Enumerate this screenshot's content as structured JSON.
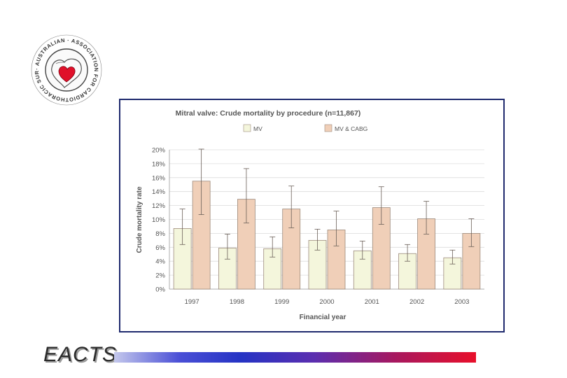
{
  "logo": {
    "ring_text": "· AUSTRALIAN · ASSOCIATION FOR CARDIOTHORACIC SURGERY ·",
    "emblem": "heart-map-icon"
  },
  "footer": {
    "brand": "EACTS"
  },
  "colors": {
    "frame": "#1f2a6e",
    "mv_fill": "#f4f6dc",
    "mv_cabg_fill": "#f0cfb8",
    "bar_stroke": "#9c8a7c",
    "grid": "#dcdcdc",
    "text": "#555555"
  },
  "chart_data": {
    "type": "bar",
    "title": "Mitral valve: Crude mortality by procedure (n=11,867)",
    "xlabel": "Financial year",
    "ylabel": "Crude mortality rate",
    "ylim": [
      0,
      20
    ],
    "y_ticks": [
      "0%",
      "2%",
      "4%",
      "6%",
      "8%",
      "10%",
      "12%",
      "14%",
      "16%",
      "18%",
      "20%"
    ],
    "categories": [
      "1997",
      "1998",
      "1999",
      "2000",
      "2001",
      "2002",
      "2003"
    ],
    "legend_position": "top",
    "grid": true,
    "series": [
      {
        "name": "MV",
        "values": [
          8.7,
          5.9,
          5.8,
          7.0,
          5.5,
          5.1,
          4.5
        ],
        "error_low": [
          6.4,
          4.3,
          4.6,
          5.6,
          4.3,
          4.0,
          3.6
        ],
        "error_high": [
          11.5,
          7.9,
          7.5,
          8.6,
          6.9,
          6.4,
          5.6
        ]
      },
      {
        "name": "MV & CABG",
        "values": [
          15.5,
          12.9,
          11.5,
          8.5,
          11.7,
          10.1,
          8.0
        ],
        "error_low": [
          10.7,
          9.5,
          8.8,
          6.2,
          9.3,
          7.9,
          6.1
        ],
        "error_high": [
          20.1,
          17.3,
          14.8,
          11.2,
          14.7,
          12.6,
          10.1
        ]
      }
    ]
  }
}
